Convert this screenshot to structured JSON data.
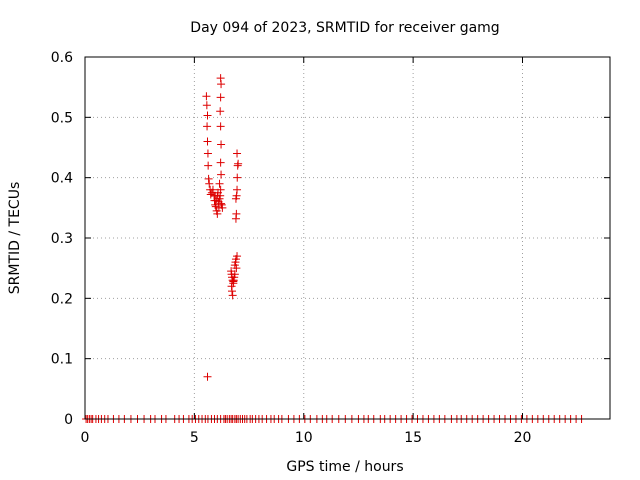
{
  "chart_data": {
    "type": "scatter",
    "title": "Day 094 of 2023, SRMTID for receiver gamg",
    "xlabel": "GPS time / hours",
    "ylabel": "SRMTID / TECUs",
    "xlim": [
      0,
      24
    ],
    "ylim": [
      0,
      0.6
    ],
    "x_ticks": [
      0,
      5,
      10,
      15,
      20
    ],
    "y_ticks": [
      0,
      0.1,
      0.2,
      0.3,
      0.4,
      0.5,
      0.6
    ],
    "x_tick_labels": [
      "0",
      "5",
      "10",
      "15",
      "20"
    ],
    "y_tick_labels": [
      "0",
      "0.1",
      "0.2",
      "0.3",
      "0.4",
      "0.5",
      "0.6"
    ],
    "grid": true,
    "marker": "+",
    "color": "#dd0000",
    "series": [
      {
        "name": "SRMTID",
        "points": [
          [
            0.05,
            0
          ],
          [
            0.12,
            0
          ],
          [
            0.2,
            0
          ],
          [
            0.28,
            0
          ],
          [
            0.35,
            0
          ],
          [
            0.5,
            0
          ],
          [
            0.62,
            0
          ],
          [
            0.75,
            0
          ],
          [
            0.9,
            0
          ],
          [
            1.05,
            0
          ],
          [
            1.3,
            0
          ],
          [
            1.55,
            0
          ],
          [
            1.8,
            0
          ],
          [
            2.1,
            0
          ],
          [
            2.4,
            0
          ],
          [
            2.7,
            0
          ],
          [
            3.0,
            0
          ],
          [
            3.2,
            0
          ],
          [
            3.5,
            0
          ],
          [
            3.7,
            0
          ],
          [
            4.1,
            0
          ],
          [
            4.3,
            0
          ],
          [
            4.5,
            0
          ],
          [
            4.75,
            0
          ],
          [
            4.9,
            0
          ],
          [
            5.05,
            0
          ],
          [
            5.2,
            0
          ],
          [
            5.35,
            0
          ],
          [
            5.5,
            0
          ],
          [
            5.62,
            0
          ],
          [
            5.78,
            0
          ],
          [
            5.92,
            0
          ],
          [
            6.05,
            0
          ],
          [
            6.2,
            0
          ],
          [
            6.35,
            0
          ],
          [
            6.42,
            0
          ],
          [
            6.5,
            0
          ],
          [
            6.6,
            0
          ],
          [
            6.68,
            0
          ],
          [
            6.75,
            0
          ],
          [
            6.85,
            0
          ],
          [
            6.92,
            0
          ],
          [
            7.0,
            0
          ],
          [
            7.1,
            0
          ],
          [
            7.2,
            0
          ],
          [
            7.3,
            0
          ],
          [
            7.4,
            0
          ],
          [
            7.55,
            0
          ],
          [
            7.65,
            0
          ],
          [
            7.8,
            0
          ],
          [
            7.95,
            0
          ],
          [
            8.1,
            0
          ],
          [
            8.3,
            0
          ],
          [
            8.5,
            0
          ],
          [
            8.65,
            0
          ],
          [
            8.85,
            0
          ],
          [
            9.0,
            0
          ],
          [
            9.3,
            0
          ],
          [
            9.55,
            0
          ],
          [
            9.8,
            0
          ],
          [
            10.05,
            0
          ],
          [
            10.3,
            0
          ],
          [
            10.6,
            0
          ],
          [
            10.85,
            0
          ],
          [
            11.05,
            0
          ],
          [
            11.3,
            0
          ],
          [
            11.6,
            0
          ],
          [
            11.9,
            0
          ],
          [
            12.2,
            0
          ],
          [
            12.5,
            0
          ],
          [
            12.75,
            0
          ],
          [
            12.95,
            0
          ],
          [
            13.2,
            0
          ],
          [
            13.5,
            0
          ],
          [
            13.7,
            0
          ],
          [
            13.95,
            0
          ],
          [
            14.2,
            0
          ],
          [
            14.45,
            0
          ],
          [
            14.7,
            0
          ],
          [
            14.95,
            0
          ],
          [
            15.2,
            0
          ],
          [
            15.45,
            0
          ],
          [
            15.7,
            0
          ],
          [
            15.95,
            0
          ],
          [
            16.2,
            0
          ],
          [
            16.45,
            0
          ],
          [
            16.75,
            0
          ],
          [
            17.0,
            0
          ],
          [
            17.2,
            0
          ],
          [
            17.45,
            0
          ],
          [
            17.7,
            0
          ],
          [
            17.95,
            0
          ],
          [
            18.2,
            0
          ],
          [
            18.45,
            0
          ],
          [
            18.7,
            0
          ],
          [
            18.95,
            0
          ],
          [
            19.2,
            0
          ],
          [
            19.45,
            0
          ],
          [
            19.7,
            0
          ],
          [
            19.95,
            0
          ],
          [
            20.2,
            0
          ],
          [
            20.45,
            0
          ],
          [
            20.7,
            0
          ],
          [
            20.95,
            0
          ],
          [
            21.2,
            0
          ],
          [
            21.45,
            0
          ],
          [
            21.7,
            0
          ],
          [
            21.95,
            0
          ],
          [
            22.2,
            0
          ],
          [
            22.45,
            0
          ],
          [
            22.7,
            0
          ],
          [
            5.6,
            0.07
          ],
          [
            5.55,
            0.535
          ],
          [
            5.57,
            0.52
          ],
          [
            5.6,
            0.503
          ],
          [
            5.58,
            0.485
          ],
          [
            5.6,
            0.46
          ],
          [
            5.62,
            0.44
          ],
          [
            5.63,
            0.42
          ],
          [
            5.65,
            0.398
          ],
          [
            5.68,
            0.39
          ],
          [
            5.72,
            0.38
          ],
          [
            5.75,
            0.372
          ],
          [
            5.8,
            0.375
          ],
          [
            5.85,
            0.38
          ],
          [
            5.9,
            0.37
          ],
          [
            5.92,
            0.362
          ],
          [
            5.95,
            0.355
          ],
          [
            5.98,
            0.352
          ],
          [
            6.0,
            0.362
          ],
          [
            6.02,
            0.345
          ],
          [
            6.05,
            0.37
          ],
          [
            6.08,
            0.375
          ],
          [
            6.1,
            0.36
          ],
          [
            6.12,
            0.35
          ],
          [
            6.15,
            0.365
          ],
          [
            6.18,
            0.37
          ],
          [
            6.2,
            0.38
          ],
          [
            6.22,
            0.357
          ],
          [
            6.25,
            0.355
          ],
          [
            6.28,
            0.35
          ],
          [
            6.05,
            0.34
          ],
          [
            5.95,
            0.37
          ],
          [
            6.15,
            0.39
          ],
          [
            6.2,
            0.565
          ],
          [
            6.22,
            0.555
          ],
          [
            6.2,
            0.533
          ],
          [
            6.18,
            0.51
          ],
          [
            6.2,
            0.485
          ],
          [
            6.22,
            0.455
          ],
          [
            6.2,
            0.425
          ],
          [
            6.22,
            0.405
          ],
          [
            6.7,
            0.24
          ],
          [
            6.72,
            0.235
          ],
          [
            6.75,
            0.23
          ],
          [
            6.78,
            0.225
          ],
          [
            6.7,
            0.22
          ],
          [
            6.8,
            0.23
          ],
          [
            6.85,
            0.24
          ],
          [
            6.72,
            0.212
          ],
          [
            6.75,
            0.205
          ],
          [
            6.85,
            0.255
          ],
          [
            6.9,
            0.265
          ],
          [
            6.95,
            0.27
          ],
          [
            6.88,
            0.26
          ],
          [
            6.92,
            0.25
          ],
          [
            6.82,
            0.235
          ],
          [
            6.68,
            0.245
          ],
          [
            6.78,
            0.228
          ],
          [
            6.95,
            0.44
          ],
          [
            6.98,
            0.42
          ],
          [
            7.0,
            0.423
          ],
          [
            6.96,
            0.4
          ],
          [
            6.95,
            0.38
          ],
          [
            6.93,
            0.37
          ],
          [
            6.9,
            0.365
          ],
          [
            6.92,
            0.34
          ],
          [
            6.9,
            0.332
          ]
        ]
      }
    ]
  }
}
